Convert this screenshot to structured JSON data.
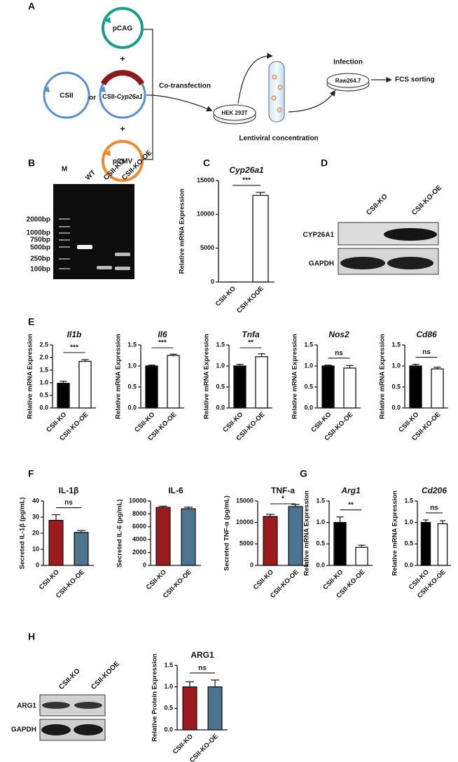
{
  "panel_labels": [
    "A",
    "B",
    "C",
    "D",
    "E",
    "F",
    "G",
    "H"
  ],
  "diagram": {
    "pcag": "pCAG",
    "csii": "CSII",
    "or": "or",
    "csii_prefix": "CSII-",
    "csii_gene": "Cyp26a1",
    "pcmv": "pCMV",
    "plus": [
      "+",
      "+"
    ],
    "cotransfection": "Co-transfection",
    "hek": "HEK 293T",
    "lentiviral": "Lentiviral concentration",
    "infection": "Infection",
    "raw": "Raw264.7",
    "fcs": "FCS sorting"
  },
  "gel": {
    "lanes": [
      "M",
      "WT",
      "CSII-KO",
      "CSII-KO-OE"
    ],
    "sizes": [
      "2000bp",
      "1000bp",
      "750bp",
      "500bp",
      "250bp",
      "100bp"
    ]
  },
  "blot_d": {
    "lanes": [
      "CSII-KO",
      "CSII-KO-OE"
    ],
    "rows": [
      "CYP26A1",
      "GAPDH"
    ]
  },
  "blot_h": {
    "lanes": [
      "CSII-KO",
      "CSII-KOOE"
    ],
    "rows": [
      "ARG1",
      "GAPDH"
    ]
  },
  "chart_data": [
    {
      "type": "bar",
      "title": "Cyp26a1",
      "title_italic": true,
      "ylabel": "Relative mRNA Expression",
      "categories": [
        "CSII-KO",
        "CSII-KOOE"
      ],
      "values": [
        0,
        12800
      ],
      "errors": [
        0,
        450
      ],
      "colors": [
        "#ffffff",
        "#ffffff"
      ],
      "ylim": [
        0,
        15000
      ],
      "yticks": [
        0,
        5000,
        10000,
        15000
      ],
      "significance": "***"
    },
    {
      "type": "bar",
      "title": "Il1b",
      "title_italic": true,
      "ylabel": "Relative mRNA Expression",
      "categories": [
        "CSII-KO",
        "CSII-KO-OE"
      ],
      "values": [
        0.98,
        1.85
      ],
      "errors": [
        0.08,
        0.07
      ],
      "colors": [
        "#000000",
        "#ffffff"
      ],
      "ylim": [
        0,
        2.5
      ],
      "yticks": [
        {
          "value": 0,
          "label": "0.0"
        },
        0.5,
        {
          "value": 1,
          "label": "1.0"
        },
        1.5,
        {
          "value": 2,
          "label": "2.0"
        },
        2.5
      ],
      "significance": "***"
    },
    {
      "type": "bar",
      "title": "Il6",
      "title_italic": true,
      "ylabel": "Relative mRNA Expression",
      "categories": [
        "CSII-KO",
        "CSII-KO-OE"
      ],
      "values": [
        1.0,
        1.25
      ],
      "errors": [
        0.02,
        0.03
      ],
      "colors": [
        "#000000",
        "#ffffff"
      ],
      "ylim": [
        0,
        1.5
      ],
      "yticks": [
        {
          "value": 0,
          "label": "0.0"
        },
        0.5,
        {
          "value": 1,
          "label": "1.0"
        },
        1.5
      ],
      "significance": "***"
    },
    {
      "type": "bar",
      "title": "Tnfa",
      "title_italic": true,
      "ylabel": "Relative mRNA Expression",
      "categories": [
        "CSII-KO",
        "CSII-KO-OE"
      ],
      "values": [
        1.0,
        1.22
      ],
      "errors": [
        0.04,
        0.07
      ],
      "colors": [
        "#000000",
        "#ffffff"
      ],
      "ylim": [
        0,
        1.5
      ],
      "yticks": [
        {
          "value": 0,
          "label": "0.0"
        },
        0.5,
        {
          "value": 1,
          "label": "1.0"
        },
        1.5
      ],
      "significance": "**"
    },
    {
      "type": "bar",
      "title": "Nos2",
      "title_italic": true,
      "ylabel": "Relative mRNA Expression",
      "categories": [
        "CSII-KO",
        "CSII-KO-OE"
      ],
      "values": [
        1.0,
        0.95
      ],
      "errors": [
        0.02,
        0.06
      ],
      "colors": [
        "#000000",
        "#ffffff"
      ],
      "ylim": [
        0,
        1.5
      ],
      "yticks": [
        {
          "value": 0,
          "label": "0.0"
        },
        0.5,
        {
          "value": 1,
          "label": "1.0"
        },
        1.5
      ],
      "significance": "ns"
    },
    {
      "type": "bar",
      "title": "Cd86",
      "title_italic": true,
      "ylabel": "Relative mRNA Expression",
      "categories": [
        "CSII-KO",
        "CSII-KO-OE"
      ],
      "values": [
        1.0,
        0.93
      ],
      "errors": [
        0.04,
        0.04
      ],
      "colors": [
        "#000000",
        "#ffffff"
      ],
      "ylim": [
        0,
        1.5
      ],
      "yticks": [
        {
          "value": 0,
          "label": "0.0"
        },
        0.5,
        {
          "value": 1,
          "label": "1.0"
        },
        1.5
      ],
      "significance": "ns"
    },
    {
      "type": "bar",
      "title": "IL-1β",
      "title_italic": false,
      "ylabel": "Secreted IL-1β (pg/mL)",
      "categories": [
        "CSII-KO",
        "CSII-KO-OE"
      ],
      "values": [
        28,
        20.5
      ],
      "errors": [
        3.5,
        1.2
      ],
      "colors": [
        "#9b1b1e",
        "#4e7590"
      ],
      "ylim": [
        0,
        40
      ],
      "yticks": [
        0,
        10,
        20,
        30,
        40
      ],
      "significance": "ns"
    },
    {
      "type": "bar",
      "title": "IL-6",
      "title_italic": false,
      "ylabel": "Secreted IL-6 (pg/mL)",
      "categories": [
        "CSII-KO",
        "CSII-KO-OE"
      ],
      "values": [
        9000,
        8800
      ],
      "errors": [
        200,
        250
      ],
      "colors": [
        "#9b1b1e",
        "#4e7590"
      ],
      "ylim": [
        0,
        10000
      ],
      "yticks": [
        0,
        2000,
        4000,
        6000,
        8000,
        10000
      ]
    },
    {
      "type": "bar",
      "title": "TNF-a",
      "title_italic": false,
      "ylabel": "Secreted TNF-α (pg/mL)",
      "categories": [
        "CSII-KO",
        "CSII-KO-OE"
      ],
      "values": [
        11400,
        13700
      ],
      "errors": [
        500,
        500
      ],
      "colors": [
        "#9b1b1e",
        "#4e7590"
      ],
      "ylim": [
        0,
        15000
      ],
      "yticks": [
        0,
        5000,
        10000,
        15000
      ],
      "significance": "*"
    },
    {
      "type": "bar",
      "title": "Arg1",
      "title_italic": true,
      "ylabel": "Relative mRNA Expression",
      "categories": [
        "CSII-KO",
        "CSII-KO-OE"
      ],
      "values": [
        1.0,
        0.42
      ],
      "errors": [
        0.13,
        0.05
      ],
      "colors": [
        "#000000",
        "#ffffff"
      ],
      "ylim": [
        0,
        1.5
      ],
      "yticks": [
        {
          "value": 0,
          "label": "0.0"
        },
        0.5,
        {
          "value": 1,
          "label": "1.0"
        },
        1.5
      ],
      "significance": "**"
    },
    {
      "type": "bar",
      "title": "Cd206",
      "title_italic": true,
      "ylabel": "Relative mRNA Expression",
      "categories": [
        "CSII-KO",
        "CSII-KO-OE"
      ],
      "values": [
        1.0,
        0.97
      ],
      "errors": [
        0.06,
        0.07
      ],
      "colors": [
        "#000000",
        "#ffffff"
      ],
      "ylim": [
        0,
        1.5
      ],
      "yticks": [
        {
          "value": 0,
          "label": "0.0"
        },
        0.5,
        {
          "value": 1,
          "label": "1.0"
        },
        1.5
      ],
      "significance": "ns"
    },
    {
      "type": "bar",
      "title": "ARG1",
      "title_italic": false,
      "ylabel": "Relative Protein Expression",
      "categories": [
        "CSII-KO",
        "CSII-KO-OE"
      ],
      "values": [
        1.0,
        1.0
      ],
      "errors": [
        0.12,
        0.16
      ],
      "colors": [
        "#9b1b1e",
        "#4e7590"
      ],
      "ylim": [
        0,
        1.5
      ],
      "yticks": [
        {
          "value": 0,
          "label": "0.0"
        },
        0.5,
        {
          "value": 1,
          "label": "1.0"
        },
        1.5
      ],
      "significance": "ns"
    }
  ]
}
